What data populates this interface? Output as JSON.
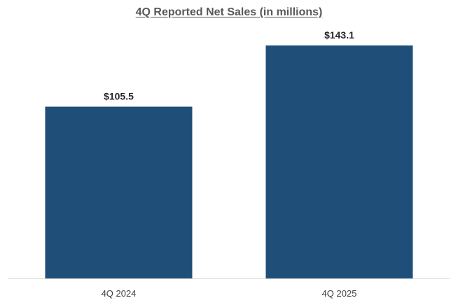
{
  "chart_data": {
    "type": "bar",
    "title": "4Q Reported Net Sales (in millions)",
    "categories": [
      "4Q 2024",
      "4Q 2025"
    ],
    "values": [
      105.5,
      143.1
    ],
    "data_labels": [
      "$105.5",
      "$143.1"
    ],
    "xlabel": "",
    "ylabel": "",
    "ylim": [
      0,
      150
    ],
    "grid": false,
    "legend": "none",
    "bar_color": "#1f4e79",
    "axis_color": "#d9d9d9"
  }
}
